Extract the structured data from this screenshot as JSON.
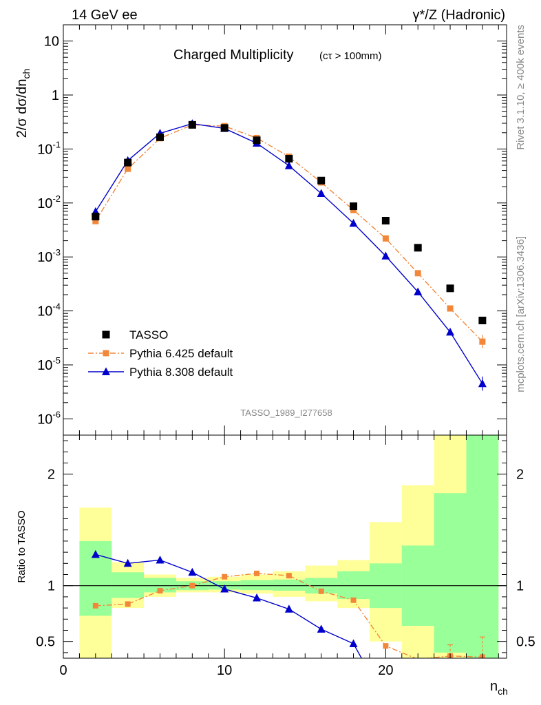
{
  "header": {
    "left": "14 GeV ee",
    "right": "γ*/Z (Hadronic)"
  },
  "side_labels": {
    "top": "Rivet 3.1.10, ≥ 400k events",
    "bottom": "mcplots.cern.ch [arXiv:1306.3436]"
  },
  "chart_data": [
    {
      "type": "scatter",
      "title": "Charged Multiplicity",
      "subtitle": "(cτ > 100mm)",
      "ylabel": "2/σ dσ/dn_ch",
      "yscale": "log",
      "ylim": [
        5e-07,
        20
      ],
      "xlim": [
        0,
        27.5
      ],
      "watermark": "TASSO_1989_I277658",
      "ytick_labels": [
        "10",
        "1",
        "10^-1",
        "10^-2",
        "10^-3",
        "10^-4",
        "10^-5",
        "10^-6"
      ],
      "legend": {
        "position": "bottom-left"
      },
      "series": [
        {
          "name": "TASSO",
          "color": "#000000",
          "marker": "square",
          "x": [
            2,
            4,
            6,
            8,
            10,
            12,
            14,
            16,
            18,
            20,
            22,
            24,
            26
          ],
          "y": [
            0.0056,
            0.056,
            0.165,
            0.28,
            0.245,
            0.145,
            0.066,
            0.026,
            0.0087,
            0.0047,
            0.00148,
            0.000262,
            6.65e-05
          ]
        },
        {
          "name": "Pythia 6.425 default",
          "color": "#f2873a",
          "marker": "square-small",
          "line": "dashdot",
          "x": [
            2,
            4,
            6,
            8,
            10,
            12,
            14,
            16,
            18,
            20,
            22,
            24,
            26
          ],
          "y": [
            0.0046,
            0.043,
            0.158,
            0.28,
            0.265,
            0.16,
            0.072,
            0.024,
            0.0074,
            0.0022,
            0.0005,
            0.000111,
            2.7e-05
          ]
        },
        {
          "name": "Pythia 8.308 default",
          "color": "#0000cc",
          "marker": "triangle",
          "line": "solid",
          "x": [
            2,
            4,
            6,
            8,
            10,
            12,
            14,
            16,
            18,
            20,
            22,
            24,
            26
          ],
          "y": [
            0.0069,
            0.061,
            0.195,
            0.295,
            0.24,
            0.128,
            0.049,
            0.015,
            0.0042,
            0.00104,
            0.000225,
            4.05e-05,
            4.5e-06
          ]
        }
      ]
    },
    {
      "type": "line",
      "ylabel": "Ratio to TASSO",
      "xlabel": "n_ch",
      "ylim": [
        0.35,
        2.35
      ],
      "xlim": [
        0,
        27.5
      ],
      "xtick_labels": [
        "0",
        "10",
        "20"
      ],
      "ytick_labels": [
        "0.5",
        "1",
        "2"
      ],
      "bands": {
        "bins": [
          [
            1,
            3
          ],
          [
            3,
            5
          ],
          [
            5,
            7
          ],
          [
            7,
            9
          ],
          [
            9,
            11
          ],
          [
            11,
            13
          ],
          [
            13,
            15
          ],
          [
            15,
            17
          ],
          [
            17,
            19
          ],
          [
            19,
            21
          ],
          [
            21,
            23
          ],
          [
            23,
            25
          ],
          [
            25,
            27
          ]
        ],
        "green": [
          [
            0.73,
            1.4
          ],
          [
            0.89,
            1.12
          ],
          [
            0.94,
            1.07
          ],
          [
            0.96,
            1.04
          ],
          [
            0.965,
            1.04
          ],
          [
            0.96,
            1.05
          ],
          [
            0.955,
            1.055
          ],
          [
            0.93,
            1.07
          ],
          [
            0.88,
            1.13
          ],
          [
            0.8,
            1.2
          ],
          [
            0.64,
            1.36
          ],
          [
            0.4,
            1.83
          ],
          [
            0.35,
            2.35
          ]
        ],
        "yellow": [
          [
            0.35,
            1.7
          ],
          [
            0.8,
            1.21
          ],
          [
            0.9,
            1.1
          ],
          [
            0.94,
            1.07
          ],
          [
            0.94,
            1.08
          ],
          [
            0.93,
            1.1
          ],
          [
            0.9,
            1.13
          ],
          [
            0.86,
            1.18
          ],
          [
            0.8,
            1.23
          ],
          [
            0.5,
            1.57
          ],
          [
            0.35,
            1.9
          ],
          [
            0.35,
            2.35
          ],
          [
            0.35,
            2.35
          ]
        ],
        "green_color": "#99ff99",
        "yellow_color": "#ffff99"
      },
      "series": [
        {
          "name": "Pythia 6.425 default",
          "color": "#f2873a",
          "x": [
            2,
            4,
            6,
            8,
            10,
            12,
            14,
            16,
            18,
            20,
            22,
            24,
            26
          ],
          "y": [
            0.82,
            0.835,
            0.955,
            1.0,
            1.08,
            1.11,
            1.09,
            0.95,
            0.87,
            0.46,
            0.34,
            0.37,
            0.36
          ]
        },
        {
          "name": "Pythia 8.308 default",
          "color": "#0000cc",
          "x": [
            2,
            4,
            6,
            8,
            10,
            12,
            14,
            16,
            18,
            18.5
          ],
          "y": [
            1.28,
            1.2,
            1.23,
            1.12,
            0.97,
            0.89,
            0.79,
            0.61,
            0.48,
            0.35
          ]
        }
      ]
    }
  ]
}
